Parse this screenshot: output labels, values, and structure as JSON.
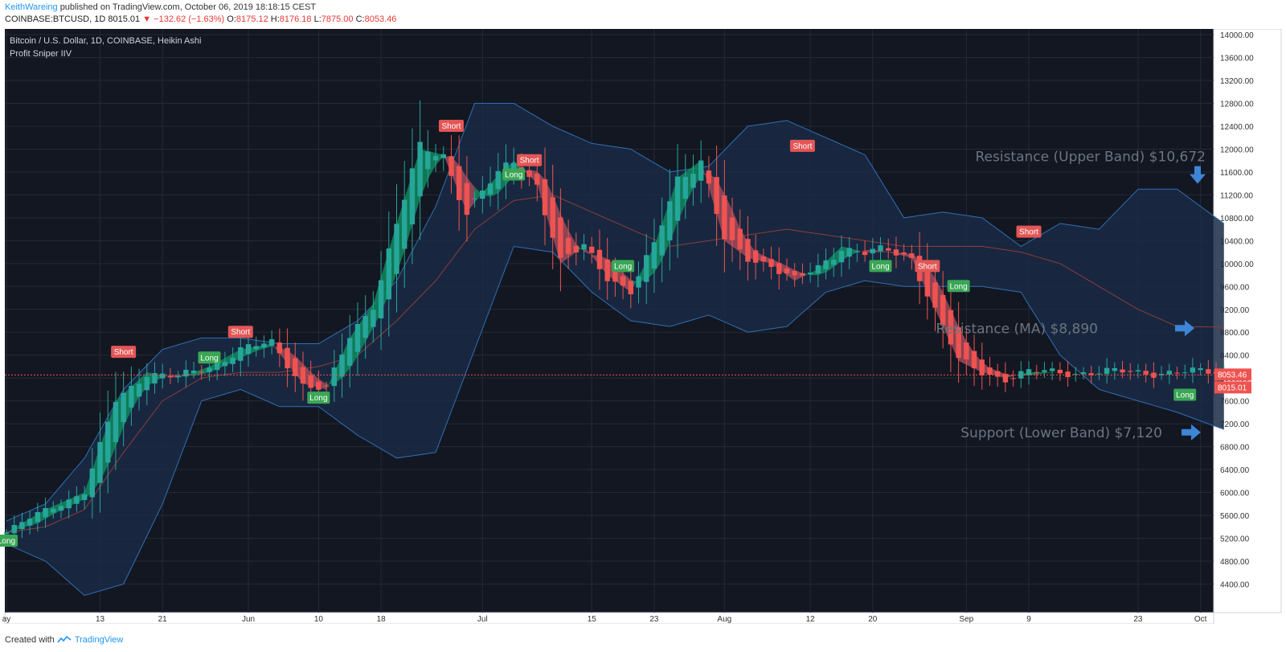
{
  "header": {
    "author": "KeithWareing",
    "published": "published on TradingView.com, October 06, 2019 18:18:15 CEST",
    "symbol": "COINBASE:BTCUSD, 1D",
    "last": "8015.01",
    "change_arrow": "▼",
    "change": "−132.62 (−1.63%)",
    "o_label": "O:",
    "o": "8175.12",
    "h_label": "H:",
    "h": "8176.18",
    "l_label": "L:",
    "l": "7875.00",
    "c_label": "C:",
    "c": "8053.46"
  },
  "legend": {
    "title": "Bitcoin / U.S. Dollar, 1D, COINBASE, Heikin Ashi",
    "indicator": "Profit Sniper IIV"
  },
  "footer": {
    "created": "Created with",
    "brand": "TradingView"
  },
  "colors": {
    "background": "#131722",
    "band_fill": "#1a2a44",
    "band_line": "#2f6fb5",
    "ma_line": "#8e3b3b",
    "bull": "#26a69a",
    "bear": "#ef5350",
    "ribbon_bull": "#0f8a5c",
    "ribbon_bear": "#a24a5a",
    "grid": "#242a36",
    "price_line": "#ef5350",
    "annotation_text": "#6b7480",
    "arrow": "#3d85d6"
  },
  "chart_data": {
    "type": "candlestick",
    "title": "Bitcoin / U.S. Dollar, 1D, COINBASE, Heikin Ashi",
    "ylim": [
      3900,
      14100
    ],
    "y_ticks": [
      "4400.00",
      "4800.00",
      "5200.00",
      "5600.00",
      "6000.00",
      "6400.00",
      "6800.00",
      "7200.00",
      "7600.00",
      "8000.00",
      "8400.00",
      "8800.00",
      "9200.00",
      "9600.00",
      "10000.00",
      "10400.00",
      "10800.00",
      "11200.00",
      "11600.00",
      "12000.00",
      "12400.00",
      "12800.00",
      "13200.00",
      "13600.00",
      "14000.00"
    ],
    "x_ticks": [
      {
        "label": "ay",
        "day": -11
      },
      {
        "label": "13",
        "day": 1
      },
      {
        "label": "21",
        "day": 9
      },
      {
        "label": "Jun",
        "day": 20
      },
      {
        "label": "10",
        "day": 29
      },
      {
        "label": "18",
        "day": 37
      },
      {
        "label": "Jul",
        "day": 50
      },
      {
        "label": "15",
        "day": 64
      },
      {
        "label": "23",
        "day": 72
      },
      {
        "label": "Aug",
        "day": 81
      },
      {
        "label": "12",
        "day": 92
      },
      {
        "label": "20",
        "day": 100
      },
      {
        "label": "Sep",
        "day": 112
      },
      {
        "label": "9",
        "day": 120
      },
      {
        "label": "23",
        "day": 134
      },
      {
        "label": "Oct",
        "day": 142
      }
    ],
    "series_anchor_days": [
      -11,
      -8,
      -5,
      -2,
      1,
      4,
      7,
      10,
      13,
      16,
      19,
      22,
      25,
      28,
      31,
      34,
      37,
      40,
      43,
      46,
      49,
      52,
      55,
      58,
      61,
      64,
      67,
      70,
      73,
      76,
      79,
      82,
      85,
      88,
      91,
      94,
      97,
      100,
      103,
      106,
      109,
      112,
      115,
      118,
      121,
      124,
      127,
      130,
      133,
      136,
      139,
      142,
      145
    ],
    "close_anchors": [
      5300,
      5700,
      6000,
      7600,
      8100,
      8000,
      8200,
      8500,
      8600,
      7900,
      7800,
      8700,
      9300,
      10700,
      12000,
      11900,
      10900,
      11400,
      11800,
      11400,
      10000,
      10300,
      9800,
      9500,
      10300,
      11500,
      11800,
      10400,
      10100,
      10000,
      9700,
      9900,
      10300,
      10200,
      10200,
      10100,
      9200,
      8300,
      8100,
      8000,
      8100
    ],
    "close_anchor_days": [
      -11,
      -6,
      -1,
      3,
      7,
      11,
      15,
      19,
      23,
      27,
      30,
      33,
      36,
      39,
      42,
      45,
      48,
      51,
      54,
      57,
      60,
      63,
      66,
      69,
      72,
      75,
      78,
      81,
      84,
      87,
      90,
      93,
      96,
      99,
      102,
      105,
      108,
      111,
      114,
      117,
      120
    ],
    "upper_band": [
      5500,
      5800,
      6600,
      7800,
      8500,
      8700,
      8700,
      8600,
      8600,
      9000,
      9700,
      11000,
      12800,
      12800,
      12400,
      12100,
      12000,
      11600,
      11700,
      12400,
      12500,
      12200,
      11900,
      10800,
      10900,
      10800,
      10300,
      10700,
      10600,
      11300,
      11300,
      10700
    ],
    "lower_band": [
      5100,
      4800,
      4200,
      4400,
      5800,
      7600,
      7800,
      7500,
      7500,
      7000,
      6600,
      6700,
      8500,
      10300,
      10200,
      9500,
      9000,
      8900,
      9100,
      8800,
      8900,
      9500,
      9700,
      9600,
      9600,
      9600,
      9500,
      8400,
      7800,
      7600,
      7400,
      7100
    ],
    "ma": [
      5300,
      5400,
      5700,
      6700,
      7600,
      8000,
      8100,
      8100,
      8200,
      8400,
      9000,
      9700,
      10600,
      11100,
      11200,
      10900,
      10600,
      10300,
      10400,
      10500,
      10600,
      10500,
      10400,
      10300,
      10300,
      10300,
      10200,
      10000,
      9600,
      9200,
      8900,
      8890
    ],
    "band_days": [
      -11,
      -6,
      -1,
      4,
      9,
      14,
      19,
      24,
      29,
      34,
      39,
      44,
      49,
      54,
      59,
      64,
      69,
      74,
      79,
      84,
      89,
      94,
      99,
      104,
      109,
      114,
      119,
      124,
      129,
      134,
      139,
      145
    ],
    "price_line": 8053.46,
    "price_labels": [
      "8053.46",
      "8015.01"
    ],
    "signals": [
      {
        "label": "Long",
        "day": -11,
        "kind": "long",
        "price": 5150
      },
      {
        "label": "Short",
        "day": 4,
        "kind": "short",
        "price": 8450
      },
      {
        "label": "Long",
        "day": 15,
        "kind": "long",
        "price": 8350
      },
      {
        "label": "Short",
        "day": 19,
        "kind": "short",
        "price": 8800
      },
      {
        "label": "Long",
        "day": 29,
        "kind": "long",
        "price": 7650
      },
      {
        "label": "Short",
        "day": 46,
        "kind": "short",
        "price": 12400
      },
      {
        "label": "Long",
        "day": 54,
        "kind": "long",
        "price": 11550
      },
      {
        "label": "Short",
        "day": 56,
        "kind": "short",
        "price": 11800
      },
      {
        "label": "Long",
        "day": 68,
        "kind": "long",
        "price": 9950
      },
      {
        "label": "Short",
        "day": 91,
        "kind": "short",
        "price": 12050
      },
      {
        "label": "Long",
        "day": 101,
        "kind": "long",
        "price": 9950
      },
      {
        "label": "Short",
        "day": 107,
        "kind": "short",
        "price": 9950
      },
      {
        "label": "Long",
        "day": 111,
        "kind": "long",
        "price": 9600
      },
      {
        "label": "Short",
        "day": 120,
        "kind": "short",
        "price": 10550
      },
      {
        "label": "Long",
        "day": 140,
        "kind": "long",
        "price": 7700
      }
    ],
    "annotations": [
      {
        "text": "Resistance (Upper Band) $10,672",
        "price": 11590,
        "arrow": "down"
      },
      {
        "text": "Resistance (MA) $8,890",
        "price": 8870,
        "arrow": "right"
      },
      {
        "text": "Support (Lower Band) $7,120",
        "price": 7050,
        "arrow": "right"
      }
    ]
  }
}
